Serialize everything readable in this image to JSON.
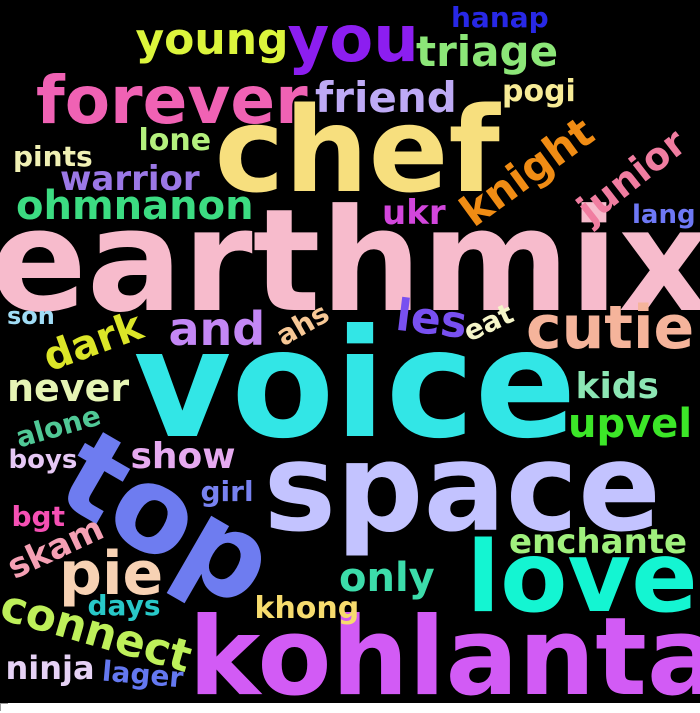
{
  "words": [
    {
      "text": "earthmix",
      "color": "#F7BBCC",
      "rotate": false
    },
    {
      "text": "voice",
      "color": "#32E6E6",
      "rotate": false
    },
    {
      "text": "space",
      "color": "#C3C3FF",
      "rotate": false
    },
    {
      "text": "chef",
      "color": "#F7DF7E",
      "rotate": false
    },
    {
      "text": "kohlanta",
      "color": "#D25BF5",
      "rotate": false
    },
    {
      "text": "top",
      "color": "#6E7CF0",
      "rotate": true
    },
    {
      "text": "love",
      "color": "#14F5D2",
      "rotate": false
    },
    {
      "text": "you",
      "color": "#8C1EF0",
      "rotate": false
    },
    {
      "text": "forever",
      "color": "#F062B4",
      "rotate": false
    },
    {
      "text": "cutie",
      "color": "#F5B49B",
      "rotate": false
    },
    {
      "text": "pie",
      "color": "#F7D2B4",
      "rotate": false
    },
    {
      "text": "and",
      "color": "#C387F5",
      "rotate": false
    },
    {
      "text": "young",
      "color": "#DCF53C",
      "rotate": false
    },
    {
      "text": "triage",
      "color": "#8CE678",
      "rotate": false
    },
    {
      "text": "friend",
      "color": "#BEAAF5",
      "rotate": false
    },
    {
      "text": "knight",
      "color": "#F08C14",
      "rotate": true
    },
    {
      "text": "hanap",
      "color": "#2828E6",
      "rotate": false
    },
    {
      "text": "pogi",
      "color": "#F7EB96",
      "rotate": false
    },
    {
      "text": "lone",
      "color": "#B4F07D",
      "rotate": false
    },
    {
      "text": "pints",
      "color": "#F0F0B4",
      "rotate": false
    },
    {
      "text": "warrior",
      "color": "#9B78E6",
      "rotate": false
    },
    {
      "text": "ohmnanon",
      "color": "#3CDC82",
      "rotate": false
    },
    {
      "text": "junior",
      "color": "#F07DA0",
      "rotate": true
    },
    {
      "text": "ukr",
      "color": "#D246DC",
      "rotate": false
    },
    {
      "text": "lang",
      "color": "#6E78F5",
      "rotate": false
    },
    {
      "text": "les",
      "color": "#7850F0",
      "rotate": false
    },
    {
      "text": "dark",
      "color": "#DCE628",
      "rotate": true
    },
    {
      "text": "ahs",
      "color": "#F7C896",
      "rotate": true
    },
    {
      "text": "eat",
      "color": "#F5F5C8",
      "rotate": true
    },
    {
      "text": "son",
      "color": "#A0DCF5",
      "rotate": false
    },
    {
      "text": "never",
      "color": "#E6F5B4",
      "rotate": false
    },
    {
      "text": "kids",
      "color": "#8CE6B4",
      "rotate": false
    },
    {
      "text": "upvel",
      "color": "#3CE628",
      "rotate": false
    },
    {
      "text": "alone",
      "color": "#50C896",
      "rotate": true
    },
    {
      "text": "boys",
      "color": "#E6C8F5",
      "rotate": false
    },
    {
      "text": "show",
      "color": "#E6AAF0",
      "rotate": false
    },
    {
      "text": "girl",
      "color": "#7882F0",
      "rotate": false
    },
    {
      "text": "bgt",
      "color": "#F550B4",
      "rotate": false
    },
    {
      "text": "skam",
      "color": "#F5A0B4",
      "rotate": true
    },
    {
      "text": "enchante",
      "color": "#A0F07D",
      "rotate": false
    },
    {
      "text": "only",
      "color": "#3CDCAA",
      "rotate": false
    },
    {
      "text": "connect",
      "color": "#BEF05A",
      "rotate": true
    },
    {
      "text": "days",
      "color": "#28C8C8",
      "rotate": false
    },
    {
      "text": "khong",
      "color": "#F7DC6E",
      "rotate": false
    },
    {
      "text": "ninja",
      "color": "#E6D2F5",
      "rotate": false
    },
    {
      "text": "lager",
      "color": "#6478F0",
      "rotate": true
    }
  ]
}
